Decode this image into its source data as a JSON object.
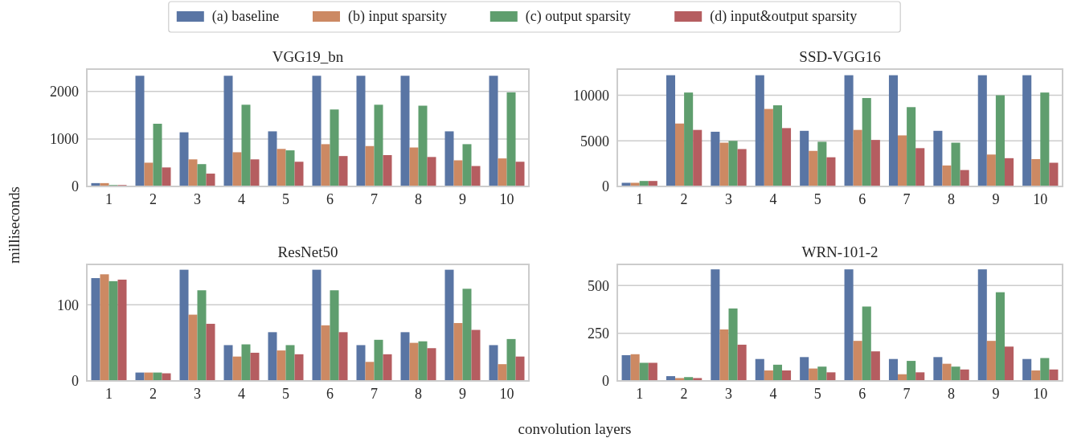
{
  "chart_data": [
    {
      "type": "bar",
      "title": "VGG19_bn",
      "ylabel": "milliseconds",
      "categories": [
        "1",
        "2",
        "3",
        "4",
        "5",
        "6",
        "7",
        "8",
        "9",
        "10"
      ],
      "ylim": [
        0,
        2470
      ],
      "yticks": [
        0,
        1000,
        2000
      ],
      "grid": "y",
      "legend": "top",
      "series": [
        {
          "name": "(a) baseline",
          "color": "#5975a4",
          "values": [
            70,
            2330,
            1140,
            2330,
            1160,
            2330,
            2330,
            2330,
            1160,
            2330
          ]
        },
        {
          "name": "(b) input sparsity",
          "color": "#cc8963",
          "values": [
            70,
            500,
            570,
            720,
            790,
            890,
            850,
            820,
            550,
            590
          ]
        },
        {
          "name": "(c) output sparsity",
          "color": "#5f9e6e",
          "values": [
            30,
            1320,
            470,
            1720,
            760,
            1620,
            1720,
            1700,
            890,
            1980
          ]
        },
        {
          "name": "(d) input&output sparsity",
          "color": "#b55d60",
          "values": [
            30,
            400,
            270,
            570,
            520,
            640,
            660,
            620,
            430,
            520
          ]
        }
      ]
    },
    {
      "type": "bar",
      "title": "SSD-VGG16",
      "categories": [
        "1",
        "2",
        "3",
        "4",
        "5",
        "6",
        "7",
        "8",
        "9",
        "10"
      ],
      "ylim": [
        0,
        12870
      ],
      "yticks": [
        0,
        5000,
        10000
      ],
      "grid": "y",
      "series": [
        {
          "color": "#5975a4",
          "values": [
            400,
            12200,
            6000,
            12200,
            6100,
            12200,
            12200,
            6100,
            12200,
            12200
          ]
        },
        {
          "color": "#cc8963",
          "values": [
            400,
            6900,
            4800,
            8500,
            3900,
            6200,
            5600,
            2300,
            3500,
            3000
          ]
        },
        {
          "color": "#5f9e6e",
          "values": [
            600,
            10300,
            5000,
            8900,
            4900,
            9700,
            8700,
            4800,
            10000,
            10300
          ]
        },
        {
          "color": "#b55d60",
          "values": [
            600,
            6200,
            4100,
            6400,
            3200,
            5100,
            4200,
            1800,
            3100,
            2600
          ]
        }
      ]
    },
    {
      "type": "bar",
      "title": "ResNet50",
      "xlabel": "convolution layers",
      "categories": [
        "1",
        "2",
        "3",
        "4",
        "5",
        "6",
        "7",
        "8",
        "9",
        "10"
      ],
      "ylim": [
        0,
        153
      ],
      "yticks": [
        0,
        100
      ],
      "grid": "y",
      "series": [
        {
          "color": "#5975a4",
          "values": [
            135,
            11,
            146,
            47,
            64,
            146,
            47,
            64,
            146,
            47
          ]
        },
        {
          "color": "#cc8963",
          "values": [
            140,
            11,
            87,
            32,
            40,
            73,
            25,
            50,
            76,
            22
          ]
        },
        {
          "color": "#5f9e6e",
          "values": [
            131,
            11,
            119,
            48,
            47,
            119,
            54,
            52,
            121,
            55
          ]
        },
        {
          "color": "#b55d60",
          "values": [
            133,
            10,
            75,
            37,
            35,
            64,
            35,
            43,
            67,
            32
          ]
        }
      ]
    },
    {
      "type": "bar",
      "title": "WRN-101-2",
      "categories": [
        "1",
        "2",
        "3",
        "4",
        "5",
        "6",
        "7",
        "8",
        "9",
        "10"
      ],
      "ylim": [
        0,
        611
      ],
      "yticks": [
        0,
        250,
        500
      ],
      "grid": "y",
      "series": [
        {
          "color": "#5975a4",
          "values": [
            135,
            25,
            585,
            115,
            125,
            585,
            115,
            125,
            585,
            115
          ]
        },
        {
          "color": "#cc8963",
          "values": [
            140,
            15,
            270,
            55,
            65,
            210,
            35,
            90,
            210,
            55
          ]
        },
        {
          "color": "#5f9e6e",
          "values": [
            95,
            20,
            380,
            85,
            75,
            390,
            105,
            75,
            465,
            120
          ]
        },
        {
          "color": "#b55d60",
          "values": [
            95,
            15,
            190,
            55,
            45,
            155,
            45,
            60,
            180,
            60
          ]
        }
      ]
    }
  ]
}
